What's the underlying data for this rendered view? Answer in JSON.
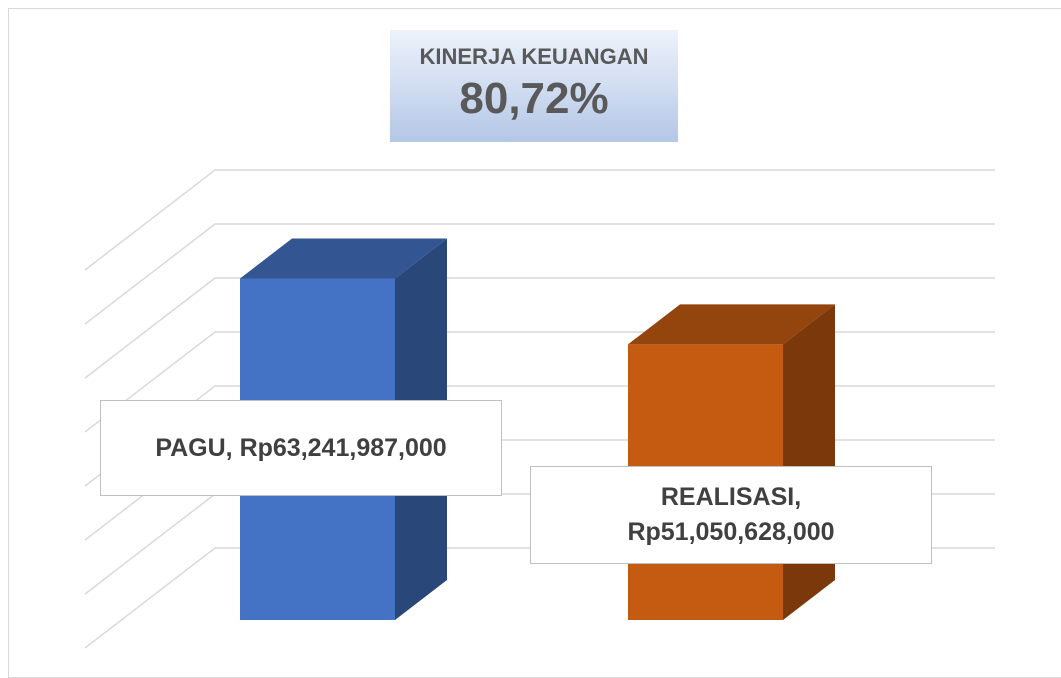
{
  "chart_data": {
    "type": "bar3d",
    "title": "KINERJA KEUANGAN",
    "subtitle": "80,72%",
    "values": [
      63241987000,
      51050628000
    ],
    "value_labels": [
      "PAGU,  Rp63,241,987,000",
      "REALISASI, Rp51,050,628,000"
    ],
    "colors": [
      "#4472c4",
      "#c55a11"
    ],
    "ylim": [
      0,
      70000000000
    ],
    "yticks": [
      0,
      10000000000,
      20000000000,
      30000000000,
      40000000000,
      50000000000,
      60000000000,
      70000000000
    ],
    "grid": true
  }
}
